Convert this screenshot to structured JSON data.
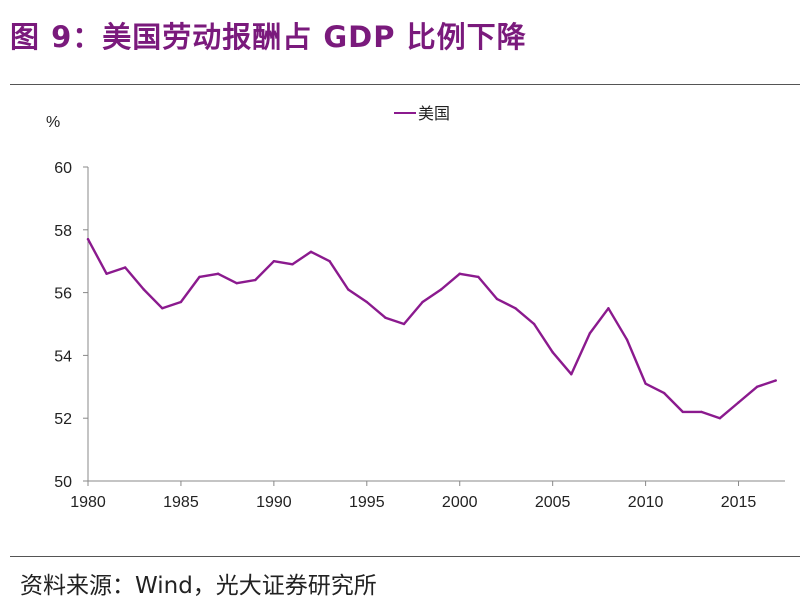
{
  "title": "图 9：美国劳动报酬占 GDP 比例下降",
  "source": "资料来源：Wind，光大证券研究所",
  "chart_data": {
    "type": "line",
    "title": "美国劳动报酬占 GDP 比例下降",
    "ylabel": "%",
    "xlabel": "",
    "ylim": [
      50,
      60
    ],
    "xlim": [
      1980,
      2017.5
    ],
    "yticks": [
      50,
      52,
      54,
      56,
      58,
      60
    ],
    "xticks": [
      1980,
      1985,
      1990,
      1995,
      2000,
      2005,
      2010,
      2015
    ],
    "ytick_labels": [
      "50",
      "52",
      "54",
      "56",
      "58",
      "60"
    ],
    "xtick_labels": [
      "1980",
      "1985",
      "1990",
      "1995",
      "2000",
      "2005",
      "2010",
      "2015"
    ],
    "legend": "top-center",
    "grid": false,
    "series": [
      {
        "name": "美国",
        "color": "#8b1a8e",
        "x": [
          1980,
          1981,
          1982,
          1983,
          1984,
          1985,
          1986,
          1987,
          1988,
          1989,
          1990,
          1991,
          1992,
          1993,
          1994,
          1995,
          1996,
          1997,
          1998,
          1999,
          2000,
          2001,
          2002,
          2003,
          2004,
          2005,
          2006,
          2007,
          2008,
          2009,
          2010,
          2011,
          2012,
          2013,
          2014,
          2015,
          2016,
          2017
        ],
        "values": [
          57.7,
          56.6,
          56.8,
          56.1,
          55.5,
          55.7,
          56.5,
          56.6,
          56.3,
          56.4,
          57.0,
          56.9,
          57.3,
          57.0,
          56.1,
          55.7,
          55.2,
          55.0,
          55.7,
          56.1,
          56.6,
          56.5,
          55.8,
          55.5,
          55.0,
          54.1,
          53.4,
          54.7,
          55.5,
          54.5,
          53.1,
          52.8,
          52.2,
          52.2,
          52.0,
          52.5,
          53.0,
          53.2
        ]
      }
    ]
  }
}
